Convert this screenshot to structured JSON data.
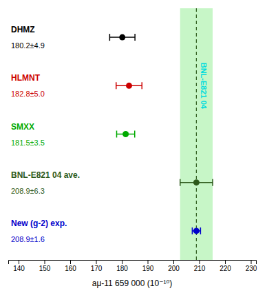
{
  "chart_data": {
    "type": "errorbar",
    "xlabel": "aμ-11 659 000 (10⁻¹⁰)",
    "categories": [
      "DHMZ",
      "HLMNT",
      "SMXX",
      "BNL-E821 04 ave.",
      "New (g-2) exp."
    ],
    "values": [
      180.2,
      182.8,
      181.5,
      208.9,
      208.9
    ],
    "errors": [
      4.9,
      5.0,
      3.5,
      6.3,
      1.6
    ],
    "data_labels": true,
    "value_labels": [
      "180.2±4.9",
      "182.8±5.0",
      "181.5±3.5",
      "208.9±6.3",
      "208.9±1.6"
    ],
    "colors": [
      "#000000",
      "#cc0000",
      "#00aa00",
      "#2d5a1b",
      "#0000cc"
    ],
    "band": {
      "center": 208.9,
      "half_width": 6.3,
      "color": "#90ee90"
    },
    "reference_line": {
      "x": 208.9,
      "color": "#2d5a1b"
    },
    "annotations": [
      {
        "text": "BNL-E821 04",
        "color": "#00dddd"
      }
    ],
    "xlim": [
      136,
      232
    ],
    "xticks": [
      140,
      150,
      160,
      170,
      180,
      190,
      200,
      210,
      220,
      230
    ]
  }
}
